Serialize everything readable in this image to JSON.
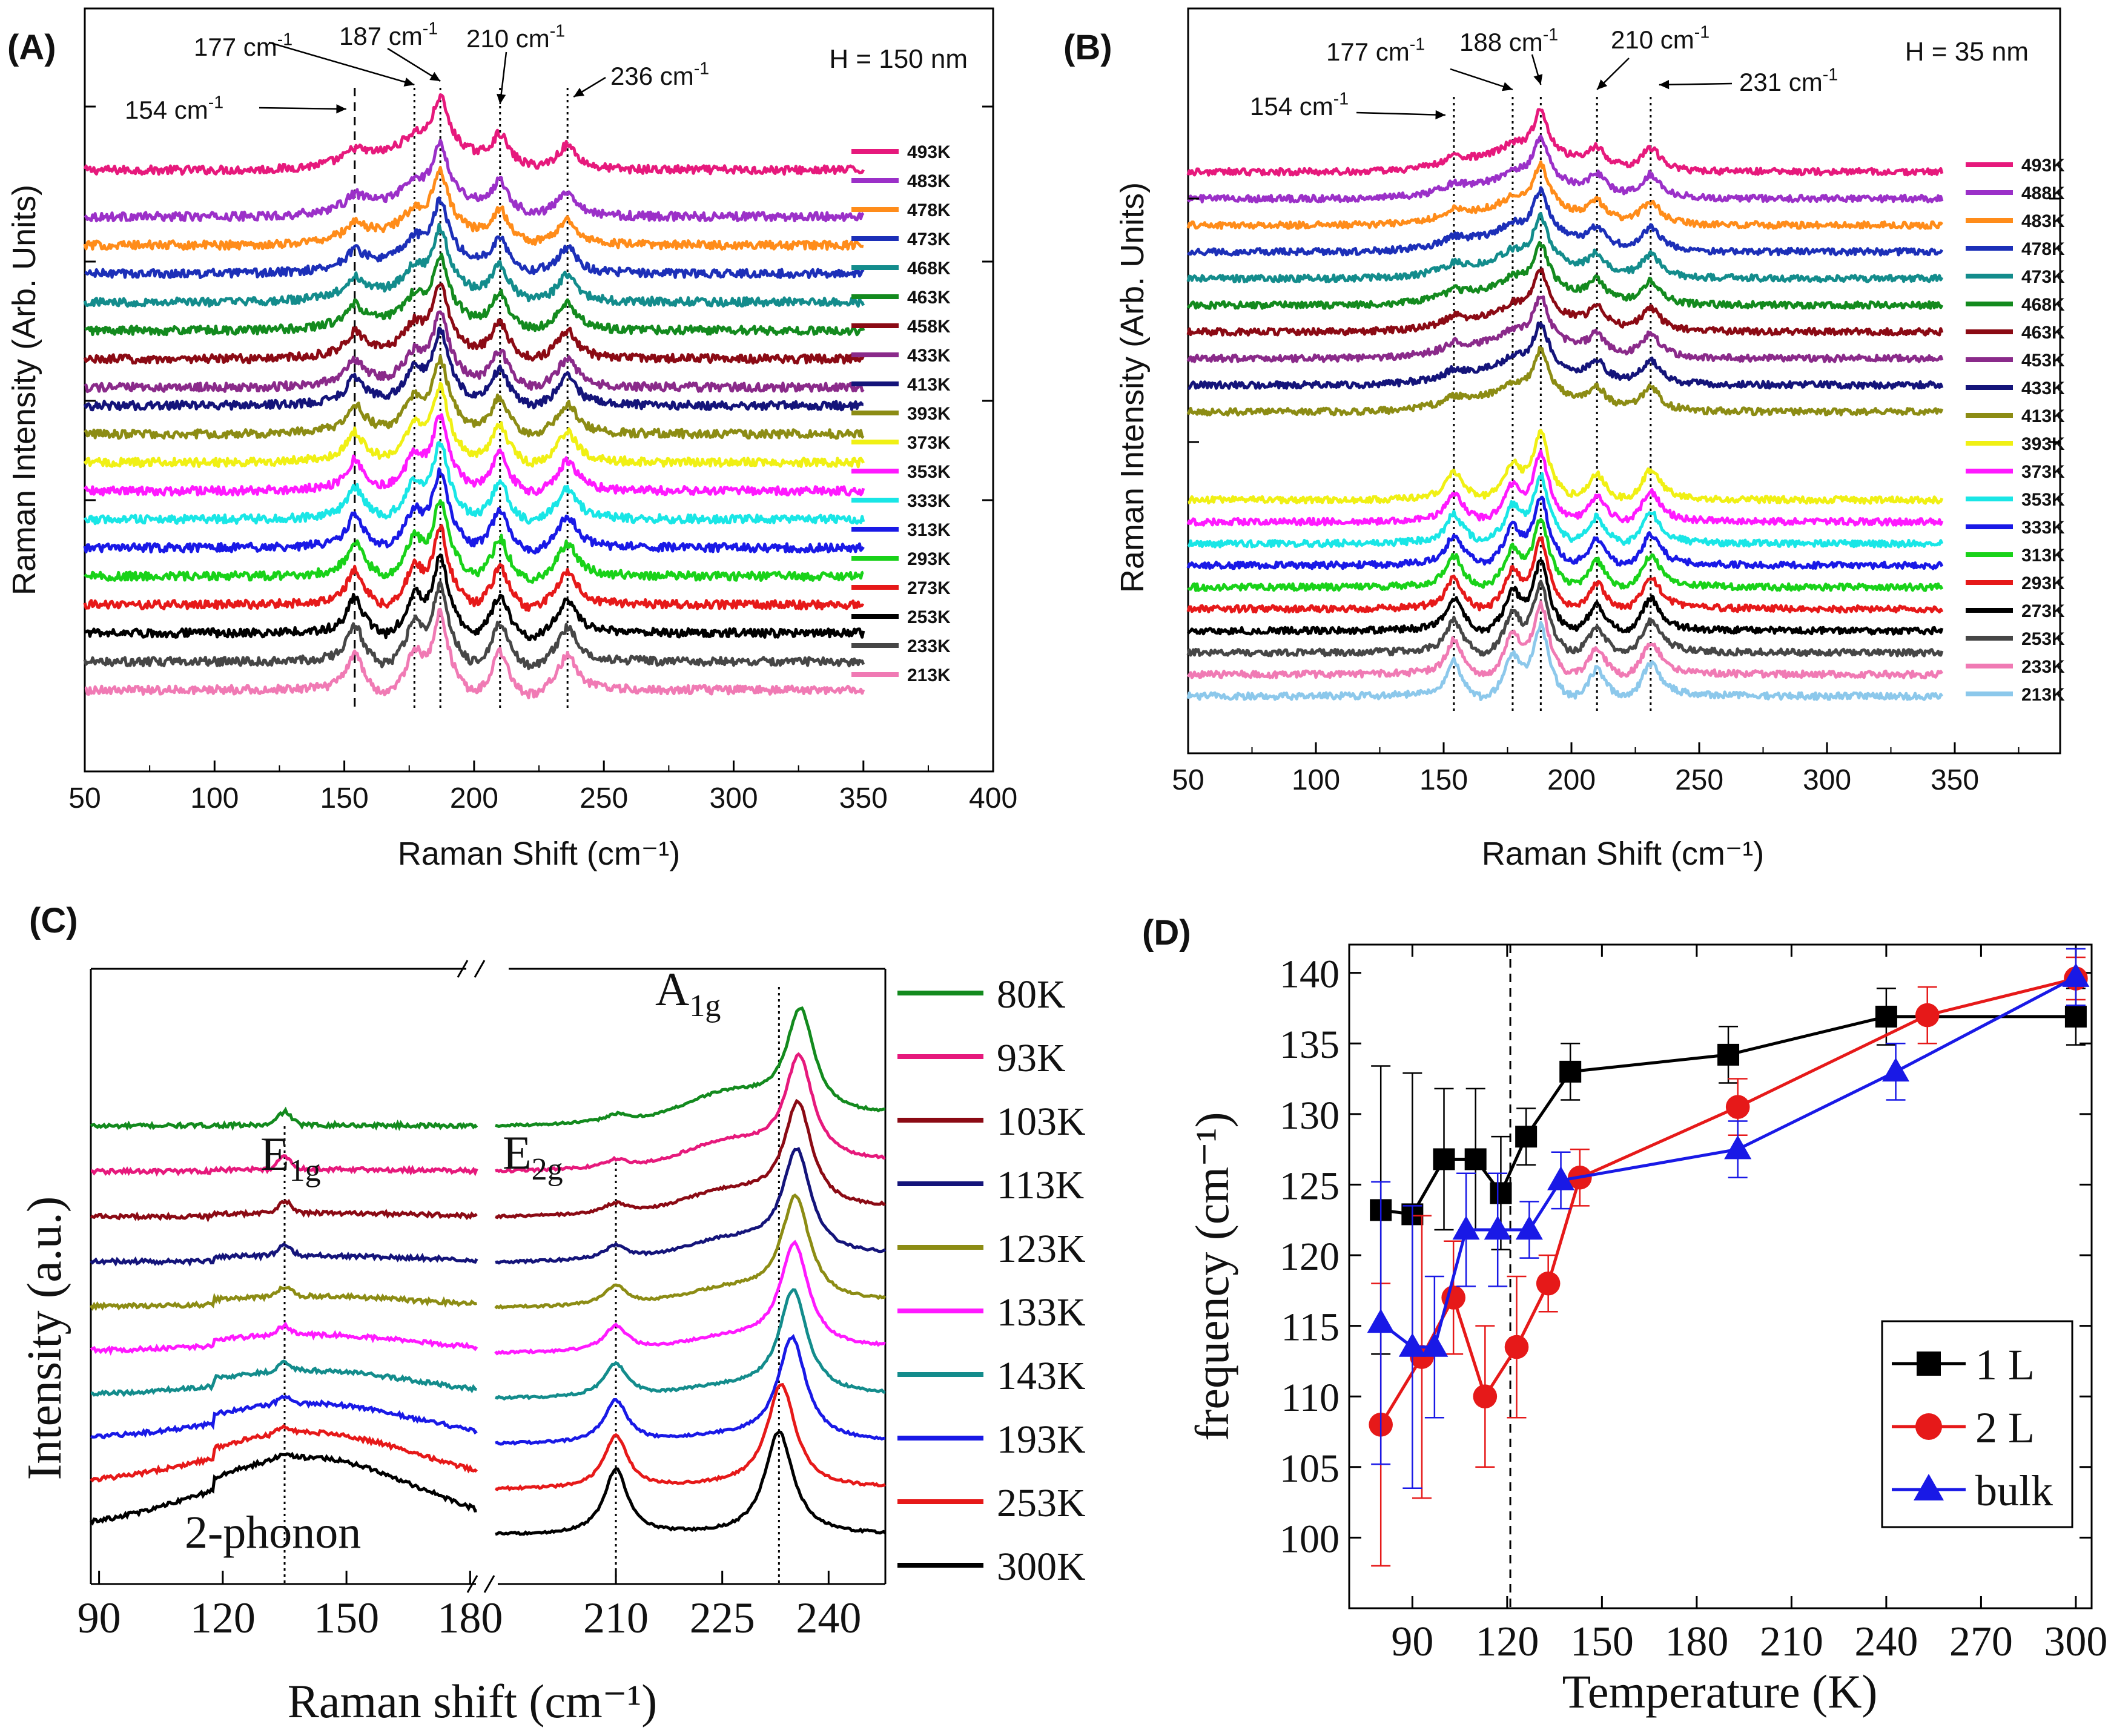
{
  "chart_data": [
    {
      "id": "A",
      "type": "line",
      "panel_label": "(A)",
      "condition": "H = 150 nm",
      "xlabel": "Raman Shift (cm⁻¹)",
      "ylabel": "Raman Intensity (Arb. Units)",
      "xlim": [
        50,
        400
      ],
      "xticks": [
        50,
        100,
        150,
        200,
        250,
        300,
        350,
        400
      ],
      "data_xrange": [
        50,
        350
      ],
      "peak_lines": [
        154,
        177,
        187,
        210,
        236
      ],
      "peak_labels": [
        {
          "text": "154 cm⁻¹",
          "x": 154
        },
        {
          "text": "177 cm⁻¹",
          "x": 177
        },
        {
          "text": "187 cm⁻¹",
          "x": 187
        },
        {
          "text": "210 cm⁻¹",
          "x": 210
        },
        {
          "text": "236 cm⁻¹",
          "x": 236
        }
      ],
      "series": [
        {
          "name": "493K",
          "color": "#e6197c"
        },
        {
          "name": "483K",
          "color": "#9b30c8"
        },
        {
          "name": "478K",
          "color": "#ff8c1a"
        },
        {
          "name": "473K",
          "color": "#1c2fb8"
        },
        {
          "name": "468K",
          "color": "#138c8c"
        },
        {
          "name": "463K",
          "color": "#138a1e"
        },
        {
          "name": "458K",
          "color": "#8b0a14"
        },
        {
          "name": "433K",
          "color": "#8a2a8a"
        },
        {
          "name": "413K",
          "color": "#14147a"
        },
        {
          "name": "393K",
          "color": "#8c8c14"
        },
        {
          "name": "373K",
          "color": "#f0f014"
        },
        {
          "name": "353K",
          "color": "#ff19ff"
        },
        {
          "name": "333K",
          "color": "#19e6e6"
        },
        {
          "name": "313K",
          "color": "#1919e6"
        },
        {
          "name": "293K",
          "color": "#19d219"
        },
        {
          "name": "273K",
          "color": "#e61919"
        },
        {
          "name": "253K",
          "color": "#000000"
        },
        {
          "name": "233K",
          "color": "#464646"
        },
        {
          "name": "213K",
          "color": "#f07ab4"
        }
      ]
    },
    {
      "id": "B",
      "type": "line",
      "panel_label": "(B)",
      "condition": "H = 35 nm",
      "xlabel": "Raman Shift (cm⁻¹)",
      "ylabel": "Raman Intensity (Arb. Units)",
      "xlim": [
        50,
        390
      ],
      "xticks": [
        50,
        100,
        150,
        200,
        250,
        300,
        350
      ],
      "data_xrange": [
        50,
        345
      ],
      "peak_lines": [
        154,
        177,
        188,
        210,
        231
      ],
      "peak_labels": [
        {
          "text": "154 cm⁻¹",
          "x": 154
        },
        {
          "text": "177 cm⁻¹",
          "x": 177
        },
        {
          "text": "188 cm⁻¹",
          "x": 188
        },
        {
          "text": "210 cm⁻¹",
          "x": 210
        },
        {
          "text": "231 cm⁻¹",
          "x": 231
        }
      ],
      "series": [
        {
          "name": "493K",
          "color": "#e6197c"
        },
        {
          "name": "488K",
          "color": "#9b30c8"
        },
        {
          "name": "483K",
          "color": "#ff8c1a"
        },
        {
          "name": "478K",
          "color": "#1c2fb8"
        },
        {
          "name": "473K",
          "color": "#138c8c"
        },
        {
          "name": "468K",
          "color": "#138a1e"
        },
        {
          "name": "463K",
          "color": "#8b0a14"
        },
        {
          "name": "453K",
          "color": "#8a2a8a"
        },
        {
          "name": "433K",
          "color": "#14147a"
        },
        {
          "name": "413K",
          "color": "#8c8c14"
        },
        {
          "name": "393K",
          "color": "#f0f014"
        },
        {
          "name": "373K",
          "color": "#ff19ff"
        },
        {
          "name": "353K",
          "color": "#19e6e6"
        },
        {
          "name": "333K",
          "color": "#1919e6"
        },
        {
          "name": "313K",
          "color": "#19d219"
        },
        {
          "name": "293K",
          "color": "#e61919"
        },
        {
          "name": "273K",
          "color": "#000000"
        },
        {
          "name": "253K",
          "color": "#464646"
        },
        {
          "name": "233K",
          "color": "#f07ab4"
        },
        {
          "name": "213K",
          "color": "#8cc8eb"
        }
      ]
    },
    {
      "id": "C",
      "type": "line",
      "panel_label": "(C)",
      "xlabel": "Raman shift (cm⁻¹)",
      "ylabel": "Intensity (a.u.)",
      "segments": [
        {
          "xlim": [
            88,
            182
          ],
          "xticks": [
            90,
            120,
            150,
            180
          ]
        },
        {
          "xlim": [
            193,
            248
          ],
          "xticks": [
            210,
            225,
            240
          ]
        }
      ],
      "peak_lines": [
        135,
        210,
        233
      ],
      "mode_labels": [
        {
          "main": "E",
          "sub": "1g",
          "x": 135
        },
        {
          "main": "E",
          "sub": "2g",
          "x": 210
        },
        {
          "main": "A",
          "sub": "1g",
          "x": 233
        }
      ],
      "annotation": "2-phonon",
      "series": [
        {
          "name": "80K",
          "color": "#138a1e"
        },
        {
          "name": "93K",
          "color": "#e6197c"
        },
        {
          "name": "103K",
          "color": "#8b0a14"
        },
        {
          "name": "113K",
          "color": "#14147a"
        },
        {
          "name": "123K",
          "color": "#8c8c14"
        },
        {
          "name": "133K",
          "color": "#ff19ff"
        },
        {
          "name": "143K",
          "color": "#138c8c"
        },
        {
          "name": "193K",
          "color": "#1919e6"
        },
        {
          "name": "253K",
          "color": "#e61919"
        },
        {
          "name": "300K",
          "color": "#000000"
        }
      ]
    },
    {
      "id": "D",
      "type": "scatter",
      "panel_label": "(D)",
      "xlabel": "Temperature (K)",
      "ylabel": "frequency (cm⁻¹)",
      "xlim": [
        70,
        305
      ],
      "ylim": [
        95,
        142
      ],
      "xticks": [
        90,
        120,
        150,
        180,
        210,
        240,
        270,
        300
      ],
      "yticks": [
        100,
        105,
        110,
        115,
        120,
        125,
        130,
        135,
        140
      ],
      "vline_x": 121,
      "legend_position": "bottom-right",
      "series": [
        {
          "name": "1 L",
          "color": "#000000",
          "marker": "square",
          "x": [
            80,
            90,
            100,
            110,
            118,
            126,
            140,
            190,
            240,
            300
          ],
          "y": [
            123.2,
            122.9,
            126.8,
            126.8,
            124.4,
            128.4,
            133.0,
            134.2,
            136.9,
            136.9
          ],
          "err": [
            10.2,
            10.0,
            5.0,
            5.0,
            4.0,
            2.0,
            2.0,
            2.0,
            2.0,
            2.0
          ]
        },
        {
          "name": "2 L",
          "color": "#e61919",
          "marker": "circle",
          "x": [
            80,
            93,
            103,
            113,
            123,
            133,
            143,
            193,
            253,
            300
          ],
          "y": [
            108.0,
            112.8,
            117.0,
            110.0,
            113.5,
            118.0,
            125.5,
            130.5,
            137.0,
            139.6
          ],
          "err": [
            10.0,
            10.0,
            4.0,
            5.0,
            5.0,
            2.0,
            2.0,
            2.0,
            2.0,
            1.5
          ]
        },
        {
          "name": "bulk",
          "color": "#1919e6",
          "marker": "triangle",
          "x": [
            80,
            90,
            97,
            107,
            117,
            127,
            137,
            193,
            243,
            300
          ],
          "y": [
            115.2,
            113.5,
            113.5,
            121.8,
            121.8,
            121.8,
            125.3,
            127.5,
            133.0,
            139.7
          ],
          "err": [
            10.0,
            10.0,
            5.0,
            4.0,
            4.0,
            2.0,
            2.0,
            2.0,
            2.0,
            2.0
          ]
        }
      ]
    }
  ]
}
